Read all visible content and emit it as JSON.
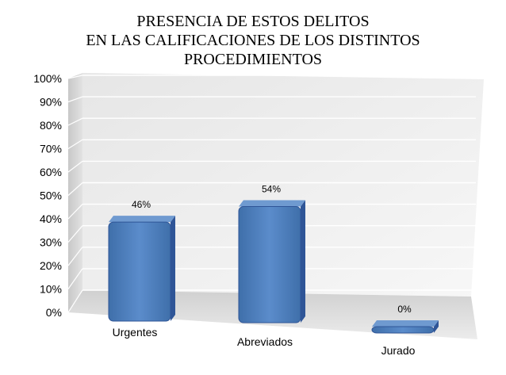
{
  "chart_data": {
    "type": "bar",
    "title_lines": [
      "PRESENCIA DE ESTOS DELITOS",
      "EN LAS CALIFICACIONES DE LOS DISTINTOS",
      "PROCEDIMIENTOS"
    ],
    "categories": [
      "Urgentes",
      "Abreviados",
      "Jurado"
    ],
    "values": [
      46,
      54,
      0
    ],
    "data_labels": [
      "46%",
      "54%",
      "0%"
    ],
    "y_ticks": [
      "0%",
      "10%",
      "20%",
      "30%",
      "40%",
      "50%",
      "60%",
      "70%",
      "80%",
      "90%",
      "100%"
    ],
    "ylim": [
      0,
      100
    ],
    "grid": true,
    "style": "3d-perspective",
    "colors": {
      "bar_front": "#4f81bd",
      "bar_side": "#2f5597",
      "bar_top": "#6f9ad0",
      "wall": "#f2f2f2",
      "floor": "#d9d9d9",
      "grid": "#ffffff"
    }
  }
}
